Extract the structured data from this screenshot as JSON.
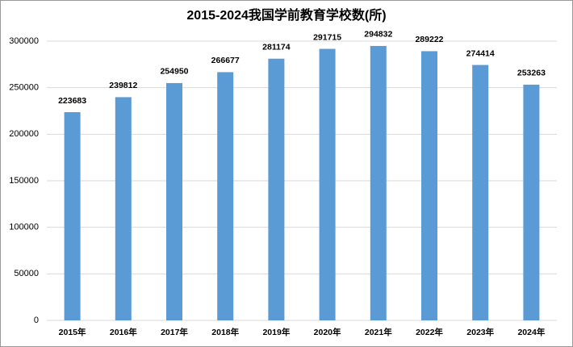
{
  "chart_data": {
    "type": "bar",
    "title": "2015-2024我国学前教育学校数(所)",
    "categories": [
      "2015年",
      "2016年",
      "2017年",
      "2018年",
      "2019年",
      "2020年",
      "2021年",
      "2022年",
      "2023年",
      "2024年"
    ],
    "values": [
      223683,
      239812,
      254950,
      266677,
      281174,
      291715,
      294832,
      289222,
      274414,
      253263
    ],
    "color": "#5b9bd5",
    "ylim": [
      0,
      300000
    ],
    "yticks": [
      0,
      50000,
      100000,
      150000,
      200000,
      250000,
      300000
    ],
    "grid": true
  }
}
